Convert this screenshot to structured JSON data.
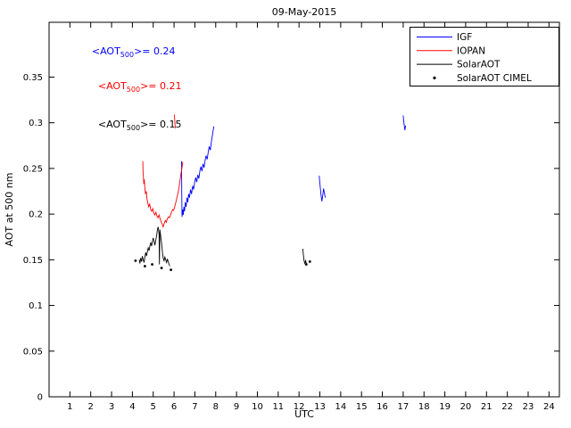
{
  "chart_data": {
    "type": "line",
    "title": "09-May-2015",
    "xlabel": "UTC",
    "ylabel": "AOT at 500 nm",
    "xlim": [
      0,
      24.5
    ],
    "ylim": [
      0,
      0.41
    ],
    "xticks": [
      1,
      2,
      3,
      4,
      5,
      6,
      7,
      8,
      9,
      10,
      11,
      12,
      13,
      14,
      15,
      16,
      17,
      18,
      19,
      20,
      21,
      22,
      23,
      24
    ],
    "yticks": [
      0,
      0.05,
      0.1,
      0.15,
      0.2,
      0.25,
      0.3,
      0.35
    ],
    "yticklabels": [
      "0",
      "0.05",
      "0.1",
      "0.15",
      "0.2",
      "0.25",
      "0.3",
      "0.35"
    ],
    "grid": false,
    "legend": {
      "position": "top-right",
      "entries": [
        "IGF",
        "IOPAN",
        "SolarAOT",
        "SolarAOT CIMEL"
      ]
    },
    "series": [
      {
        "name": "IGF",
        "color": "#0000ff",
        "style": "line",
        "segments": [
          [
            [
              6.36,
              0.258
            ],
            [
              6.37,
              0.225
            ],
            [
              6.38,
              0.197
            ],
            [
              6.41,
              0.205
            ],
            [
              6.44,
              0.199
            ],
            [
              6.47,
              0.208
            ],
            [
              6.5,
              0.203
            ],
            [
              6.54,
              0.213
            ],
            [
              6.58,
              0.208
            ],
            [
              6.62,
              0.218
            ],
            [
              6.66,
              0.213
            ],
            [
              6.7,
              0.222
            ],
            [
              6.74,
              0.218
            ],
            [
              6.79,
              0.227
            ],
            [
              6.84,
              0.222
            ],
            [
              6.89,
              0.231
            ],
            [
              6.94,
              0.227
            ],
            [
              6.99,
              0.235
            ],
            [
              7.04,
              0.24
            ],
            [
              7.09,
              0.235
            ],
            [
              7.14,
              0.243
            ],
            [
              7.19,
              0.239
            ],
            [
              7.24,
              0.247
            ],
            [
              7.29,
              0.252
            ],
            [
              7.34,
              0.247
            ],
            [
              7.39,
              0.255
            ],
            [
              7.44,
              0.251
            ],
            [
              7.49,
              0.259
            ],
            [
              7.54,
              0.264
            ],
            [
              7.59,
              0.26
            ],
            [
              7.64,
              0.268
            ],
            [
              7.69,
              0.274
            ],
            [
              7.74,
              0.27
            ],
            [
              7.79,
              0.279
            ],
            [
              7.84,
              0.286
            ],
            [
              7.88,
              0.292
            ],
            [
              7.91,
              0.296
            ]
          ],
          [
            [
              12.97,
              0.242
            ],
            [
              13.0,
              0.234
            ],
            [
              13.03,
              0.227
            ],
            [
              13.06,
              0.22
            ],
            [
              13.1,
              0.214
            ],
            [
              13.14,
              0.221
            ],
            [
              13.18,
              0.228
            ],
            [
              13.22,
              0.223
            ],
            [
              13.26,
              0.218
            ]
          ],
          [
            [
              17.0,
              0.308
            ],
            [
              17.04,
              0.299
            ],
            [
              17.08,
              0.292
            ],
            [
              17.12,
              0.297
            ]
          ]
        ]
      },
      {
        "name": "IOPAN",
        "color": "#ff0000",
        "style": "line",
        "segments": [
          [
            [
              4.5,
              0.258
            ],
            [
              4.51,
              0.247
            ],
            [
              4.53,
              0.24
            ],
            [
              4.55,
              0.233
            ],
            [
              4.57,
              0.238
            ],
            [
              4.6,
              0.228
            ],
            [
              4.63,
              0.222
            ],
            [
              4.67,
              0.225
            ],
            [
              4.7,
              0.217
            ],
            [
              4.74,
              0.212
            ],
            [
              4.78,
              0.208
            ],
            [
              4.83,
              0.211
            ],
            [
              4.88,
              0.205
            ],
            [
              4.93,
              0.203
            ],
            [
              4.98,
              0.206
            ],
            [
              5.03,
              0.201
            ],
            [
              5.08,
              0.199
            ],
            [
              5.13,
              0.202
            ],
            [
              5.18,
              0.198
            ],
            [
              5.23,
              0.196
            ],
            [
              5.28,
              0.199
            ],
            [
              5.33,
              0.195
            ],
            [
              5.38,
              0.192
            ],
            [
              5.43,
              0.189
            ],
            [
              5.48,
              0.186
            ],
            [
              5.53,
              0.19
            ],
            [
              5.58,
              0.193
            ],
            [
              5.63,
              0.191
            ],
            [
              5.68,
              0.195
            ],
            [
              5.73,
              0.197
            ],
            [
              5.78,
              0.196
            ],
            [
              5.83,
              0.199
            ],
            [
              5.88,
              0.202
            ],
            [
              5.93,
              0.205
            ],
            [
              5.98,
              0.204
            ],
            [
              6.03,
              0.208
            ],
            [
              6.08,
              0.212
            ],
            [
              6.13,
              0.217
            ],
            [
              6.18,
              0.222
            ],
            [
              6.23,
              0.228
            ],
            [
              6.28,
              0.236
            ],
            [
              6.33,
              0.244
            ],
            [
              6.38,
              0.251
            ],
            [
              6.42,
              0.257
            ]
          ],
          [
            [
              6.02,
              0.309
            ],
            [
              6.04,
              0.3
            ],
            [
              6.06,
              0.294
            ]
          ]
        ]
      },
      {
        "name": "SolarAOT",
        "color": "#000000",
        "style": "line",
        "segments": [
          [
            [
              4.33,
              0.15
            ],
            [
              4.36,
              0.146
            ],
            [
              4.4,
              0.152
            ],
            [
              4.44,
              0.148
            ],
            [
              4.48,
              0.154
            ],
            [
              4.52,
              0.15
            ],
            [
              4.56,
              0.147
            ],
            [
              4.6,
              0.153
            ],
            [
              4.64,
              0.158
            ],
            [
              4.68,
              0.154
            ],
            [
              4.72,
              0.159
            ],
            [
              4.76,
              0.163
            ],
            [
              4.8,
              0.16
            ],
            [
              4.84,
              0.165
            ],
            [
              4.88,
              0.169
            ],
            [
              4.92,
              0.165
            ],
            [
              4.96,
              0.17
            ],
            [
              5.0,
              0.174
            ],
            [
              5.04,
              0.17
            ],
            [
              5.08,
              0.166
            ],
            [
              5.12,
              0.171
            ],
            [
              5.16,
              0.176
            ],
            [
              5.2,
              0.183
            ],
            [
              5.24,
              0.186
            ],
            [
              5.28,
              0.178
            ],
            [
              5.3,
              0.145
            ],
            [
              5.32,
              0.183
            ],
            [
              5.36,
              0.176
            ],
            [
              5.4,
              0.168
            ],
            [
              5.44,
              0.159
            ],
            [
              5.48,
              0.152
            ],
            [
              5.52,
              0.149
            ],
            [
              5.56,
              0.153
            ],
            [
              5.6,
              0.15
            ],
            [
              5.64,
              0.147
            ],
            [
              5.68,
              0.151
            ],
            [
              5.72,
              0.148
            ],
            [
              5.76,
              0.145
            ],
            [
              5.8,
              0.143
            ]
          ],
          [
            [
              12.18,
              0.162
            ],
            [
              12.21,
              0.155
            ],
            [
              12.24,
              0.149
            ],
            [
              12.28,
              0.146
            ],
            [
              12.32,
              0.149
            ],
            [
              12.36,
              0.145
            ]
          ]
        ]
      },
      {
        "name": "SolarAOT CIMEL",
        "color": "#000000",
        "style": "scatter",
        "points": [
          [
            4.15,
            0.149
          ],
          [
            4.6,
            0.143
          ],
          [
            4.95,
            0.145
          ],
          [
            5.4,
            0.141
          ],
          [
            5.85,
            0.139
          ],
          [
            12.35,
            0.145
          ],
          [
            12.52,
            0.148
          ]
        ]
      }
    ],
    "annotations": [
      {
        "pre": "<AOT",
        "sub": "500",
        "post": ">= 0.24",
        "color": "#0000ff",
        "x": 2.05,
        "y": 0.375
      },
      {
        "pre": "<AOT",
        "sub": "500",
        "post": ">= 0.21",
        "color": "#ff0000",
        "x": 2.35,
        "y": 0.337
      },
      {
        "pre": "<AOT",
        "sub": "500",
        "post": ">= 0.15",
        "color": "#000000",
        "x": 2.35,
        "y": 0.295
      }
    ]
  }
}
